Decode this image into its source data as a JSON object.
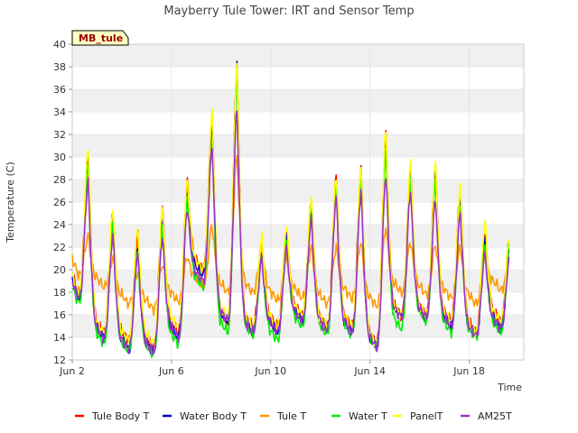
{
  "chart_data": {
    "type": "line",
    "title": "Mayberry Tule Tower: IRT and Sensor Temp",
    "xlabel": "Time",
    "ylabel": "Temperature (C)",
    "site_label": "MB_tule",
    "xlim": [
      2,
      20.2
    ],
    "ylim": [
      12,
      40
    ],
    "yticks": [
      12,
      14,
      16,
      18,
      20,
      22,
      24,
      26,
      28,
      30,
      32,
      34,
      36,
      38,
      40
    ],
    "xticks": [
      {
        "value": 2,
        "label": "Jun 2"
      },
      {
        "value": 6,
        "label": "Jun 6"
      },
      {
        "value": 10,
        "label": "Jun 10"
      },
      {
        "value": 14,
        "label": "Jun 14"
      },
      {
        "value": 18,
        "label": "Jun 18"
      }
    ],
    "grid": true,
    "legend_position": "bottom",
    "days": [
      2,
      3,
      4,
      5,
      6,
      7,
      8,
      9,
      10,
      11,
      12,
      13,
      14,
      15,
      16,
      17,
      18,
      19
    ],
    "x_end": 19.6,
    "series": [
      {
        "name": "Tule Body T",
        "color": "#ff0000",
        "maxs": [
          30.5,
          25.0,
          23.0,
          25.5,
          27.8,
          33.5,
          38.0,
          22.5,
          23.5,
          26.0,
          28.2,
          29.0,
          32.0,
          29.0,
          29.0,
          27.0,
          23.5,
          23.0
        ],
        "mins": [
          18.0,
          14.5,
          13.8,
          13.2,
          14.5,
          20.0,
          15.5,
          15.0,
          15.0,
          16.0,
          15.0,
          15.0,
          13.5,
          16.0,
          16.0,
          15.5,
          14.5,
          15.5
        ]
      },
      {
        "name": "Water Body T",
        "color": "#0000cc",
        "maxs": [
          30.0,
          24.0,
          22.0,
          24.5,
          26.5,
          32.8,
          38.0,
          21.5,
          23.0,
          25.5,
          28.0,
          28.5,
          31.5,
          28.5,
          28.5,
          26.0,
          22.5,
          22.5
        ],
        "mins": [
          17.5,
          14.0,
          13.0,
          12.7,
          14.0,
          19.5,
          15.5,
          14.5,
          14.5,
          15.5,
          14.7,
          14.5,
          13.2,
          15.8,
          15.8,
          15.0,
          14.2,
          14.8
        ]
      },
      {
        "name": "Tule T",
        "color": "#ff9900",
        "maxs": [
          23.0,
          21.0,
          19.8,
          20.5,
          21.2,
          24.0,
          30.2,
          22.0,
          21.0,
          22.0,
          22.0,
          22.5,
          23.8,
          22.5,
          22.2,
          22.0,
          21.0,
          21.0
        ],
        "mins": [
          19.5,
          18.5,
          17.0,
          16.5,
          17.2,
          18.5,
          18.0,
          18.0,
          17.3,
          17.5,
          17.0,
          17.5,
          16.8,
          18.0,
          17.8,
          17.5,
          17.0,
          18.2
        ]
      },
      {
        "name": "Water T",
        "color": "#00ee00",
        "maxs": [
          29.5,
          24.0,
          21.5,
          23.5,
          26.5,
          31.2,
          37.0,
          21.5,
          23.0,
          25.5,
          27.5,
          28.0,
          30.5,
          28.0,
          28.0,
          26.0,
          22.5,
          22.5
        ],
        "mins": [
          17.0,
          13.5,
          12.8,
          12.5,
          13.5,
          18.5,
          14.5,
          14.3,
          13.8,
          15.0,
          14.3,
          14.3,
          13.3,
          14.8,
          15.5,
          14.5,
          14.0,
          14.5
        ]
      },
      {
        "name": "PanelT",
        "color": "#ffff00",
        "maxs": [
          31.0,
          25.5,
          23.8,
          25.5,
          28.0,
          33.8,
          38.2,
          23.0,
          24.0,
          26.5,
          28.5,
          29.2,
          32.5,
          29.5,
          29.5,
          27.2,
          24.3,
          23.5
        ],
        "mins": [
          18.0,
          14.5,
          13.8,
          13.5,
          15.0,
          20.0,
          15.8,
          15.0,
          15.0,
          16.0,
          15.0,
          15.0,
          13.5,
          16.0,
          16.0,
          15.5,
          14.5,
          15.5
        ]
      },
      {
        "name": "AM25T",
        "color": "#9933cc",
        "maxs": [
          27.8,
          23.0,
          21.5,
          23.0,
          25.5,
          31.0,
          34.3,
          21.0,
          22.0,
          24.5,
          26.5,
          27.0,
          28.5,
          27.0,
          26.3,
          25.0,
          21.5,
          21.5
        ],
        "mins": [
          17.5,
          14.0,
          13.0,
          12.7,
          14.0,
          19.0,
          15.5,
          14.5,
          14.5,
          15.5,
          14.7,
          14.5,
          13.2,
          15.8,
          15.8,
          15.0,
          14.2,
          14.8
        ]
      }
    ]
  }
}
